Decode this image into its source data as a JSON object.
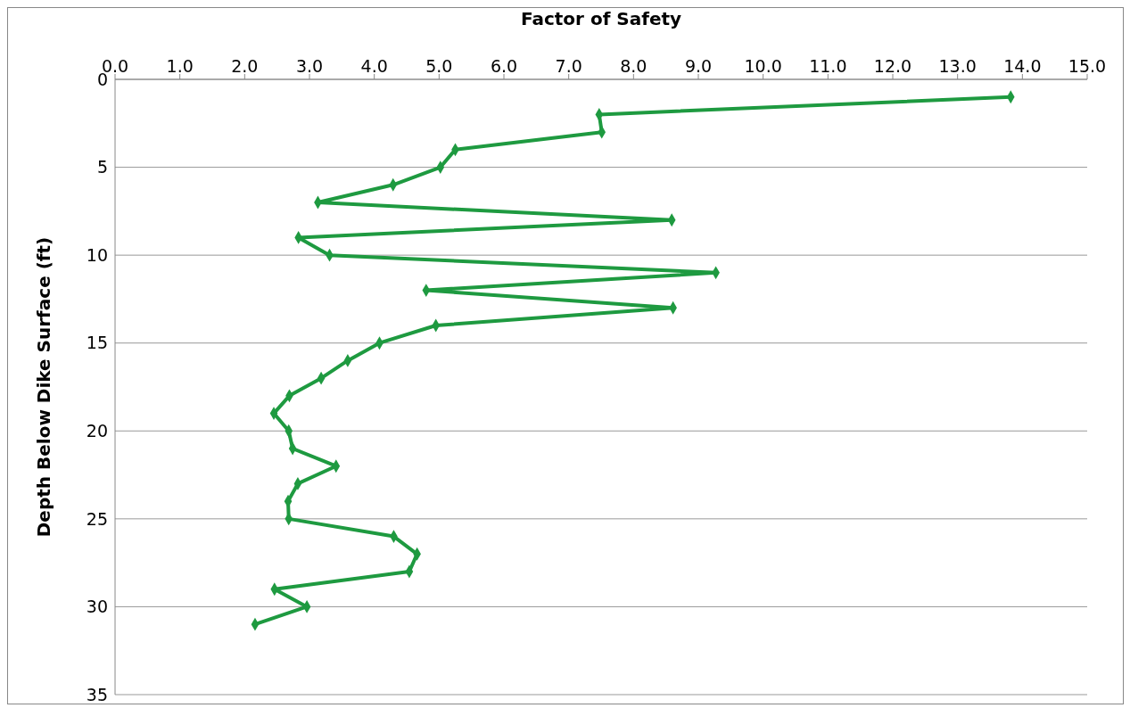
{
  "chart_data": {
    "type": "line",
    "xlabel": "Factor of Safety",
    "ylabel": "Depth Below Dike Surface (ft)",
    "x": [
      13.82,
      7.47,
      7.51,
      5.25,
      5.02,
      4.29,
      3.13,
      8.59,
      2.83,
      3.31,
      9.27,
      4.8,
      8.61,
      4.95,
      4.08,
      3.59,
      3.18,
      2.69,
      2.45,
      2.68,
      2.74,
      3.41,
      2.82,
      2.67,
      2.68,
      4.3,
      4.66,
      4.54,
      2.46,
      2.96,
      2.16
    ],
    "series": [
      {
        "color": "#1e9a40",
        "values": [
          1,
          2,
          3,
          4,
          5,
          6,
          7,
          8,
          9,
          10,
          11,
          12,
          13,
          14,
          15,
          16,
          17,
          18,
          19,
          20,
          21,
          22,
          23,
          24,
          25,
          26,
          27,
          28,
          29,
          30,
          31
        ]
      }
    ],
    "xlim": [
      0,
      15
    ],
    "xticks": [
      {
        "value": 0,
        "label": "0.0"
      },
      {
        "value": 1,
        "label": "1.0"
      },
      {
        "value": 2,
        "label": "2.0"
      },
      {
        "value": 3,
        "label": "3.0"
      },
      {
        "value": 4,
        "label": "4.0"
      },
      {
        "value": 5,
        "label": "5.0"
      },
      {
        "value": 6,
        "label": "6.0"
      },
      {
        "value": 7,
        "label": "7.0"
      },
      {
        "value": 8,
        "label": "8.0"
      },
      {
        "value": 9,
        "label": "9.0"
      },
      {
        "value": 10,
        "label": "10.0"
      },
      {
        "value": 11,
        "label": "11.0"
      },
      {
        "value": 12,
        "label": "12.0"
      },
      {
        "value": 13,
        "label": "13.0"
      },
      {
        "value": 14,
        "label": "14.0"
      },
      {
        "value": 15,
        "label": "15.0"
      }
    ],
    "ylim": [
      35,
      0
    ],
    "yticks": [
      0,
      5,
      10,
      15,
      20,
      25,
      30,
      35
    ],
    "grid": "y",
    "marker": "diamond",
    "line_style": "solid",
    "legend": false
  }
}
